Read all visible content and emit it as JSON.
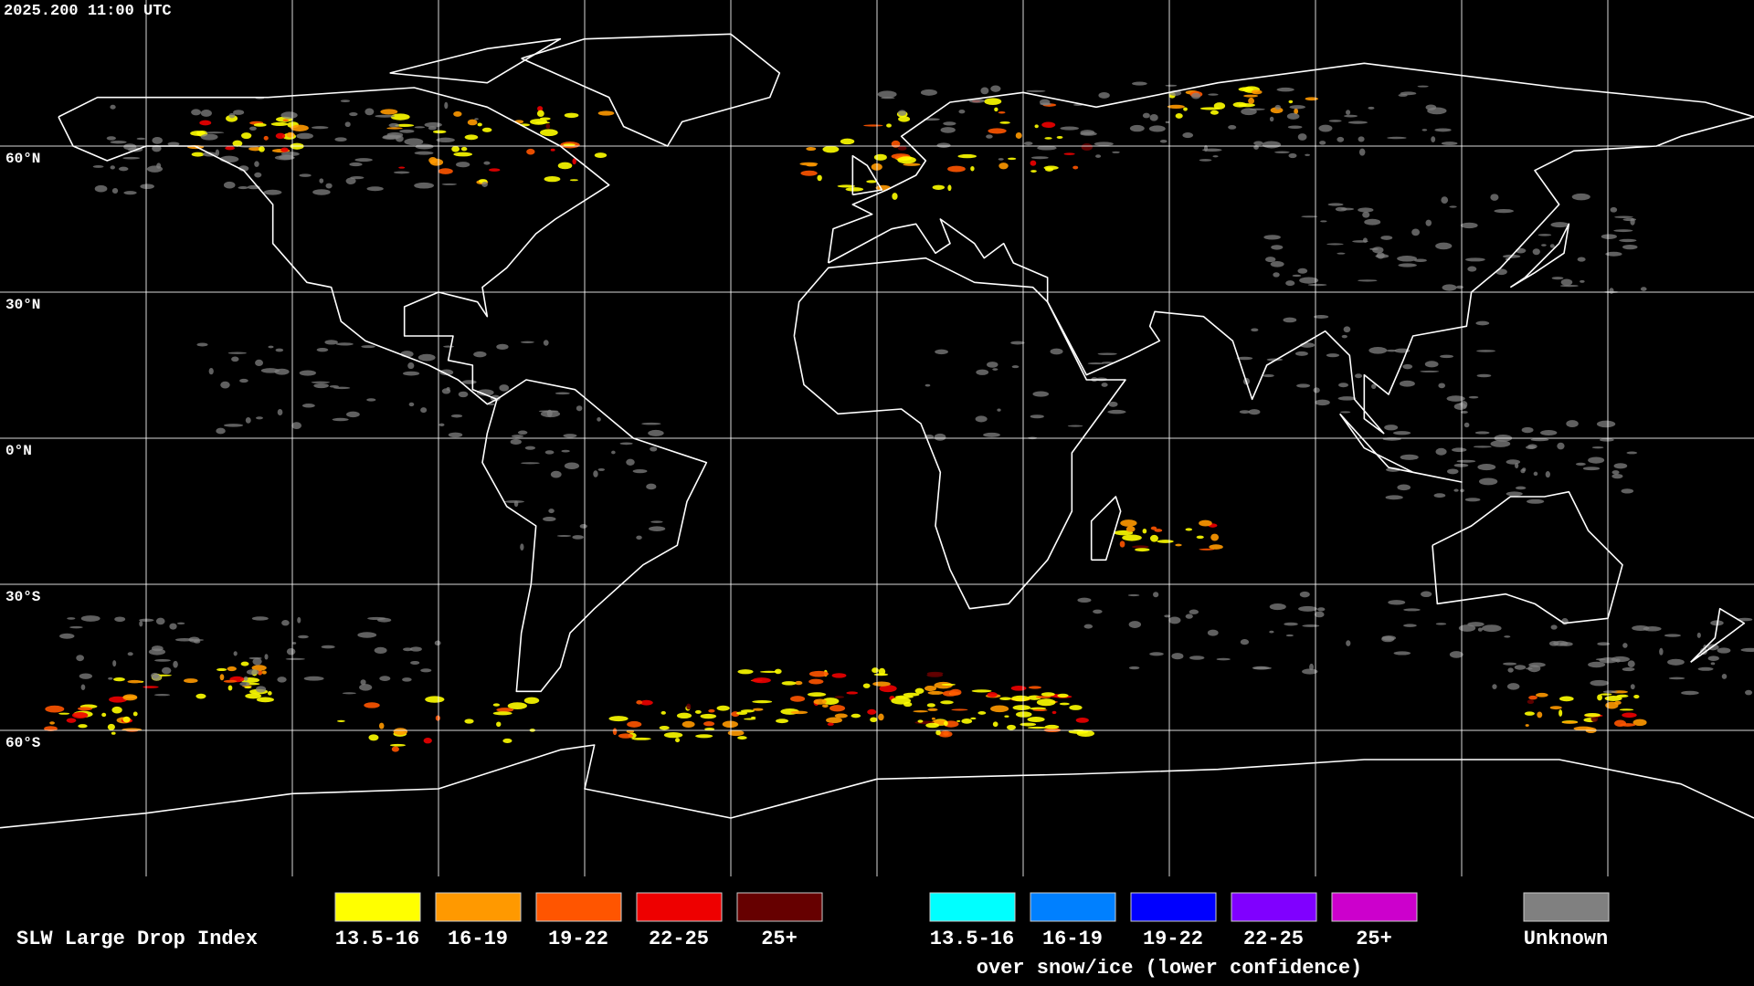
{
  "timestamp": "2025.200 11:00 UTC",
  "latitude_labels": [
    "60°N",
    "30°N",
    "0°N",
    "30°S",
    "60°S"
  ],
  "legend": {
    "title": "SLW Large Drop Index",
    "items": [
      {
        "label": "13.5-16",
        "color": "#ffff00"
      },
      {
        "label": "16-19",
        "color": "#ff9900"
      },
      {
        "label": "19-22",
        "color": "#ff5500"
      },
      {
        "label": "22-25",
        "color": "#ee0000"
      },
      {
        "label": "25+",
        "color": "#660000"
      }
    ],
    "snow_ice_items": [
      {
        "label": "13.5-16",
        "color": "#00ffff"
      },
      {
        "label": "16-19",
        "color": "#0080ff"
      },
      {
        "label": "19-22",
        "color": "#0000ff"
      },
      {
        "label": "22-25",
        "color": "#8000ff"
      },
      {
        "label": "25+",
        "color": "#cc00cc"
      }
    ],
    "snow_ice_caption": "over snow/ice (lower confidence)",
    "unknown": {
      "label": "Unknown",
      "color": "#808080"
    }
  }
}
